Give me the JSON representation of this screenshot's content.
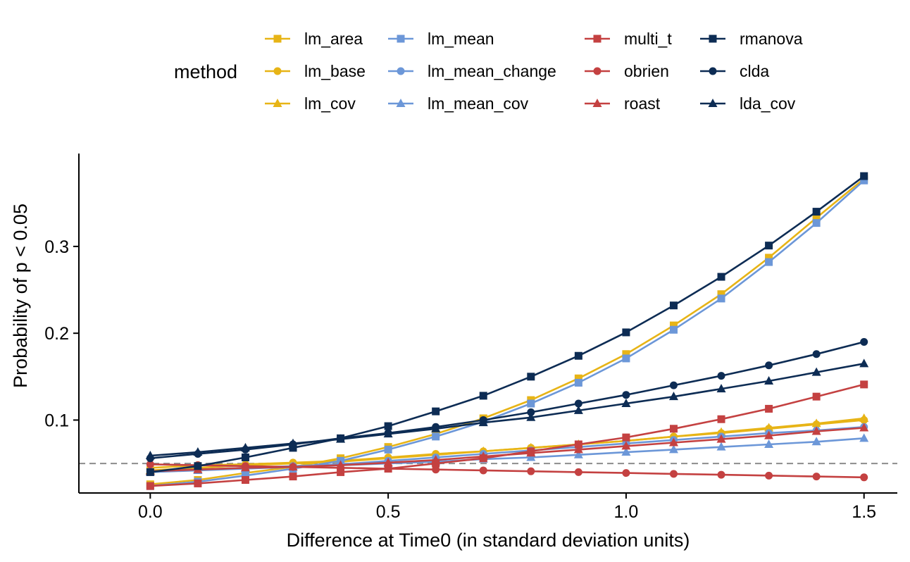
{
  "chart_data": {
    "type": "line",
    "xlabel": "Difference at Time0 (in standard deviation units)",
    "ylabel": "Probability of p < 0.05",
    "legend_title": "method",
    "legend_position": "top",
    "xlim": [
      -0.15,
      1.57
    ],
    "ylim": [
      0.016,
      0.407
    ],
    "x_ticks": [
      0.0,
      0.5,
      1.0,
      1.5
    ],
    "x_tick_labels": [
      "0.0",
      "0.5",
      "1.0",
      "1.5"
    ],
    "y_ticks": [
      0.1,
      0.2,
      0.3
    ],
    "y_tick_labels": [
      "0.1",
      "0.2",
      "0.3"
    ],
    "reference_line": 0.05,
    "grid": false,
    "x": [
      0.0,
      0.1,
      0.2,
      0.3,
      0.4,
      0.5,
      0.6,
      0.7,
      0.8,
      0.9,
      1.0,
      1.1,
      1.2,
      1.3,
      1.4,
      1.5
    ],
    "series": [
      {
        "name": "lm_area",
        "color": "#E7B416",
        "marker": "square",
        "values": [
          0.026,
          0.031,
          0.039,
          0.046,
          0.056,
          0.069,
          0.084,
          0.102,
          0.123,
          0.148,
          0.176,
          0.209,
          0.245,
          0.287,
          0.333,
          0.378
        ]
      },
      {
        "name": "lm_base",
        "color": "#E7B416",
        "marker": "circle",
        "values": [
          0.045,
          0.048,
          0.049,
          0.051,
          0.053,
          0.057,
          0.061,
          0.064,
          0.068,
          0.072,
          0.076,
          0.081,
          0.085,
          0.09,
          0.095,
          0.1
        ]
      },
      {
        "name": "lm_cov",
        "color": "#E7B416",
        "marker": "triangle",
        "values": [
          0.042,
          0.045,
          0.048,
          0.05,
          0.052,
          0.056,
          0.06,
          0.064,
          0.068,
          0.072,
          0.076,
          0.081,
          0.086,
          0.091,
          0.096,
          0.102
        ]
      },
      {
        "name": "lm_mean",
        "color": "#6C97D8",
        "marker": "square",
        "values": [
          0.024,
          0.029,
          0.036,
          0.044,
          0.053,
          0.066,
          0.081,
          0.098,
          0.119,
          0.143,
          0.171,
          0.204,
          0.24,
          0.282,
          0.327,
          0.376
        ]
      },
      {
        "name": "lm_mean_change",
        "color": "#6C97D8",
        "marker": "circle",
        "values": [
          0.041,
          0.043,
          0.045,
          0.047,
          0.049,
          0.053,
          0.057,
          0.061,
          0.065,
          0.069,
          0.073,
          0.077,
          0.081,
          0.085,
          0.088,
          0.092
        ]
      },
      {
        "name": "lm_mean_cov",
        "color": "#6C97D8",
        "marker": "triangle",
        "values": [
          0.04,
          0.042,
          0.044,
          0.046,
          0.048,
          0.05,
          0.052,
          0.055,
          0.057,
          0.06,
          0.063,
          0.066,
          0.069,
          0.072,
          0.075,
          0.079
        ]
      },
      {
        "name": "multi_t",
        "color": "#C44141",
        "marker": "square",
        "values": [
          0.024,
          0.027,
          0.031,
          0.035,
          0.04,
          0.044,
          0.05,
          0.056,
          0.064,
          0.072,
          0.08,
          0.09,
          0.101,
          0.113,
          0.127,
          0.141
        ]
      },
      {
        "name": "obrien",
        "color": "#C44141",
        "marker": "circle",
        "values": [
          0.049,
          0.048,
          0.047,
          0.046,
          0.045,
          0.044,
          0.043,
          0.042,
          0.041,
          0.04,
          0.039,
          0.038,
          0.037,
          0.036,
          0.035,
          0.034
        ]
      },
      {
        "name": "roast",
        "color": "#C44141",
        "marker": "triangle",
        "values": [
          0.041,
          0.043,
          0.045,
          0.046,
          0.048,
          0.051,
          0.054,
          0.058,
          0.062,
          0.066,
          0.07,
          0.074,
          0.078,
          0.082,
          0.087,
          0.091
        ]
      },
      {
        "name": "rmanova",
        "color": "#0D2C54",
        "marker": "square",
        "values": [
          0.04,
          0.047,
          0.057,
          0.068,
          0.079,
          0.093,
          0.11,
          0.128,
          0.15,
          0.174,
          0.201,
          0.232,
          0.265,
          0.301,
          0.34,
          0.381
        ]
      },
      {
        "name": "clda",
        "color": "#0D2C54",
        "marker": "circle",
        "values": [
          0.056,
          0.061,
          0.066,
          0.072,
          0.079,
          0.085,
          0.092,
          0.1,
          0.109,
          0.119,
          0.129,
          0.14,
          0.151,
          0.163,
          0.176,
          0.19
        ]
      },
      {
        "name": "lda_cov",
        "color": "#0D2C54",
        "marker": "triangle",
        "values": [
          0.059,
          0.063,
          0.068,
          0.073,
          0.078,
          0.084,
          0.09,
          0.097,
          0.103,
          0.111,
          0.119,
          0.127,
          0.136,
          0.145,
          0.155,
          0.165
        ]
      }
    ]
  }
}
